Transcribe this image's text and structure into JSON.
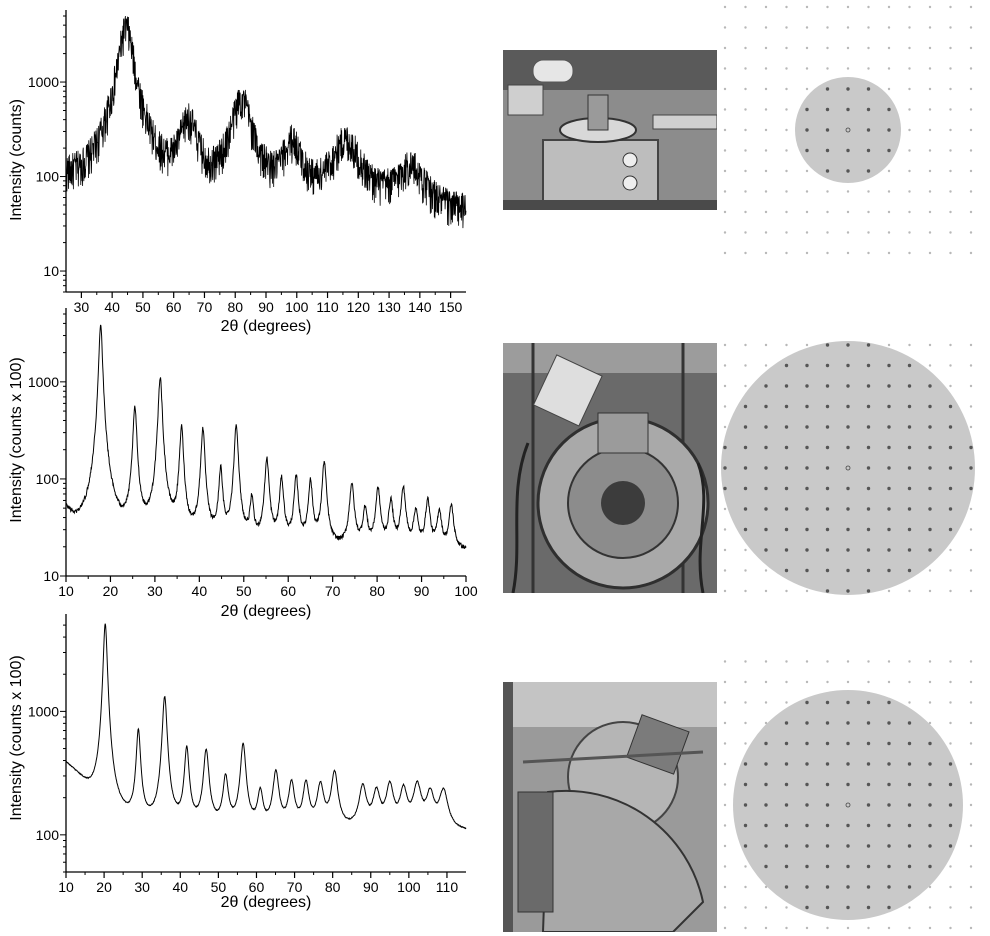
{
  "chart_data": [
    {
      "type": "line",
      "xlabel": "2θ (degrees)",
      "ylabel": "Intensity (counts)",
      "yscale": "log",
      "xlim": [
        25,
        155
      ],
      "ylim": [
        6,
        5000
      ],
      "xticks": [
        30,
        40,
        50,
        60,
        70,
        80,
        90,
        100,
        110,
        120,
        130,
        140,
        150
      ],
      "yticks": [
        10,
        100,
        1000
      ],
      "grid": false,
      "baseline": {
        "x": [
          25,
          35,
          50,
          65,
          80,
          100,
          120,
          140,
          155
        ],
        "y": [
          65,
          32,
          24,
          26,
          28,
          32,
          36,
          34,
          35
        ]
      },
      "peaks": [
        {
          "x": 44.5,
          "y": 3800,
          "width": 2.2
        },
        {
          "x": 64.8,
          "y": 330,
          "width": 2.8
        },
        {
          "x": 82.0,
          "y": 620,
          "width": 3.0
        },
        {
          "x": 98.5,
          "y": 175,
          "width": 3.0
        },
        {
          "x": 116.0,
          "y": 195,
          "width": 4.5
        },
        {
          "x": 137.0,
          "y": 85,
          "width": 4.5
        }
      ],
      "noise": 0.45
    },
    {
      "type": "line",
      "xlabel": "2θ (degrees)",
      "ylabel": "Intensity (counts x 100)",
      "yscale": "log",
      "xlim": [
        10,
        100
      ],
      "ylim": [
        10,
        5000
      ],
      "xticks": [
        10,
        20,
        30,
        40,
        50,
        60,
        70,
        80,
        90,
        100
      ],
      "yticks": [
        10,
        100,
        1000
      ],
      "grid": false,
      "baseline": {
        "x": [
          10,
          12,
          15,
          20,
          40,
          60,
          80,
          100
        ],
        "y": [
          45,
          30,
          22,
          20,
          20,
          19,
          18,
          18
        ]
      },
      "peaks": [
        {
          "x": 17.8,
          "y": 4000,
          "width": 0.35
        },
        {
          "x": 25.5,
          "y": 520,
          "width": 0.4
        },
        {
          "x": 31.2,
          "y": 1100,
          "width": 0.4
        },
        {
          "x": 36.0,
          "y": 320,
          "width": 0.4
        },
        {
          "x": 40.8,
          "y": 310,
          "width": 0.4
        },
        {
          "x": 44.8,
          "y": 105,
          "width": 0.4
        },
        {
          "x": 48.3,
          "y": 350,
          "width": 0.4
        },
        {
          "x": 51.8,
          "y": 40,
          "width": 0.4
        },
        {
          "x": 55.2,
          "y": 140,
          "width": 0.45
        },
        {
          "x": 58.5,
          "y": 80,
          "width": 0.45
        },
        {
          "x": 61.8,
          "y": 85,
          "width": 0.45
        },
        {
          "x": 65.0,
          "y": 75,
          "width": 0.45
        },
        {
          "x": 68.1,
          "y": 130,
          "width": 0.45
        },
        {
          "x": 74.3,
          "y": 70,
          "width": 0.5
        },
        {
          "x": 77.3,
          "y": 30,
          "width": 0.5
        },
        {
          "x": 80.2,
          "y": 60,
          "width": 0.5
        },
        {
          "x": 83.1,
          "y": 40,
          "width": 0.5
        },
        {
          "x": 85.9,
          "y": 62,
          "width": 0.5
        },
        {
          "x": 88.7,
          "y": 28,
          "width": 0.5
        },
        {
          "x": 91.4,
          "y": 42,
          "width": 0.5
        },
        {
          "x": 94.0,
          "y": 28,
          "width": 0.5
        },
        {
          "x": 96.7,
          "y": 35,
          "width": 0.5
        }
      ],
      "noise": 0.05
    },
    {
      "type": "line",
      "xlabel": "2θ (degrees)",
      "ylabel": "Intensity (counts x 100)",
      "yscale": "log",
      "xlim": [
        10,
        115
      ],
      "ylim": [
        50,
        5500
      ],
      "xticks": [
        10,
        20,
        30,
        40,
        50,
        60,
        70,
        80,
        90,
        100,
        110
      ],
      "yticks": [
        100,
        1000
      ],
      "grid": false,
      "baseline": {
        "x": [
          10,
          13,
          16,
          19,
          22,
          26,
          30,
          40,
          60,
          80,
          100,
          115
        ],
        "y": [
          380,
          300,
          220,
          160,
          130,
          120,
          115,
          110,
          108,
          105,
          104,
          104
        ]
      },
      "peaks": [
        {
          "x": 20.3,
          "y": 5000,
          "width": 0.5
        },
        {
          "x": 29.0,
          "y": 580,
          "width": 0.55
        },
        {
          "x": 35.9,
          "y": 1200,
          "width": 0.6
        },
        {
          "x": 41.7,
          "y": 390,
          "width": 0.6
        },
        {
          "x": 46.8,
          "y": 370,
          "width": 0.7
        },
        {
          "x": 51.9,
          "y": 180,
          "width": 0.7
        },
        {
          "x": 56.5,
          "y": 430,
          "width": 0.7
        },
        {
          "x": 61.0,
          "y": 110,
          "width": 0.7
        },
        {
          "x": 65.1,
          "y": 210,
          "width": 0.8
        },
        {
          "x": 69.2,
          "y": 150,
          "width": 0.8
        },
        {
          "x": 73.0,
          "y": 150,
          "width": 0.8
        },
        {
          "x": 76.8,
          "y": 140,
          "width": 0.9
        },
        {
          "x": 80.5,
          "y": 210,
          "width": 0.9
        },
        {
          "x": 87.9,
          "y": 135,
          "width": 1.0
        },
        {
          "x": 91.5,
          "y": 110,
          "width": 1.0
        },
        {
          "x": 95.0,
          "y": 140,
          "width": 1.0
        },
        {
          "x": 98.6,
          "y": 120,
          "width": 1.0
        },
        {
          "x": 102.2,
          "y": 140,
          "width": 1.1
        },
        {
          "x": 105.6,
          "y": 105,
          "width": 1.1
        },
        {
          "x": 109.1,
          "y": 118,
          "width": 1.2
        }
      ],
      "noise": 0.01
    }
  ],
  "photos": [
    {
      "name": "diffractometer-1-photo",
      "tone": "#6f6f6f"
    },
    {
      "name": "diffractometer-2-photo",
      "tone": "#5e5e5e"
    },
    {
      "name": "diffractometer-3-photo",
      "tone": "#8a8a8a"
    }
  ],
  "lattices": [
    {
      "name": "reciprocal-lattice-1",
      "circle_fill": "#c9c9c9",
      "dot_color": "#555555",
      "outer_dot_color": "#b8b8b8"
    },
    {
      "name": "reciprocal-lattice-2",
      "circle_fill": "#c9c9c9",
      "dot_color": "#555555",
      "outer_dot_color": "#b8b8b8"
    },
    {
      "name": "reciprocal-lattice-3",
      "circle_fill": "#c9c9c9",
      "dot_color": "#555555",
      "outer_dot_color": "#b8b8b8"
    }
  ]
}
